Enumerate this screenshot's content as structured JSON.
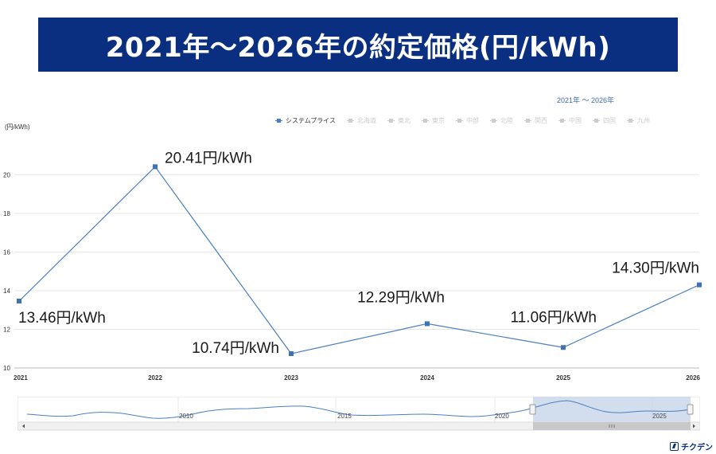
{
  "banner": {
    "title": "2021年～2026年の約定価格(円/kWh)"
  },
  "range_label": "2021年 ～ 2026年",
  "unit_label": "(円/kWh)",
  "legend": [
    {
      "label": "システムプライス",
      "active": true
    },
    {
      "label": "北海道",
      "active": false
    },
    {
      "label": "東北",
      "active": false
    },
    {
      "label": "東京",
      "active": false
    },
    {
      "label": "中部",
      "active": false
    },
    {
      "label": "北陸",
      "active": false
    },
    {
      "label": "関西",
      "active": false
    },
    {
      "label": "中国",
      "active": false
    },
    {
      "label": "四国",
      "active": false
    },
    {
      "label": "九州",
      "active": false
    }
  ],
  "chart_data": {
    "type": "line",
    "title": "2021年～2026年の約定価格(円/kWh)",
    "ylabel": "(円/kWh)",
    "x": [
      "2021",
      "2022",
      "2023",
      "2024",
      "2025",
      "2026"
    ],
    "series": [
      {
        "name": "システムプライス",
        "values": [
          13.46,
          20.41,
          10.74,
          12.29,
          11.06,
          14.3
        ]
      }
    ],
    "data_labels": [
      "13.46円/kWh",
      "20.41円/kWh",
      "10.74円/kWh",
      "12.29円/kWh",
      "11.06円/kWh",
      "14.30円/kWh"
    ],
    "y_ticks": [
      "10",
      "12",
      "14",
      "16",
      "18",
      "20"
    ],
    "ylim": [
      10,
      21
    ],
    "grid": true,
    "color": "#4a7fc0",
    "legend_position": "top-right"
  },
  "navigator": {
    "labels": [
      "2010",
      "2015",
      "2020",
      "2025"
    ],
    "color": "#4a7fc0",
    "selection_color": "#c7d5ea"
  },
  "logo": {
    "text": "チクデン"
  }
}
